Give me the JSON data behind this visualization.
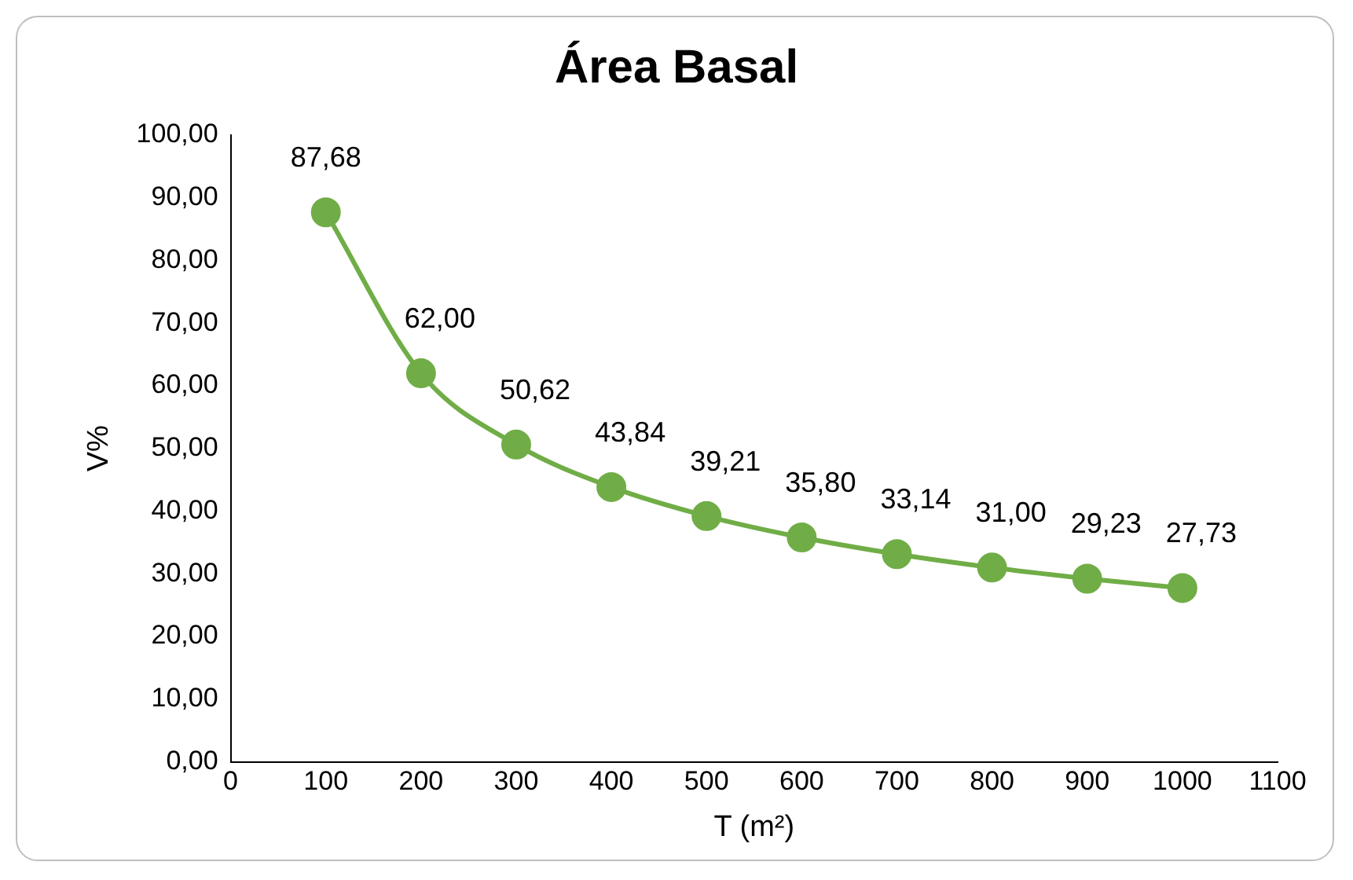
{
  "chart_data": {
    "type": "line",
    "title": "Área Basal",
    "xlabel": "T (m²)",
    "ylabel": "V%",
    "x": [
      100,
      200,
      300,
      400,
      500,
      600,
      700,
      800,
      900,
      1000
    ],
    "series": [
      {
        "color": "#70ad47",
        "values": [
          87.68,
          62.0,
          50.62,
          43.84,
          39.21,
          35.8,
          33.14,
          31.0,
          29.23,
          27.73
        ],
        "value_labels": [
          "87,68",
          "62,00",
          "50,62",
          "43,84",
          "39,21",
          "35,80",
          "33,14",
          "31,00",
          "29,23",
          "27,73"
        ]
      }
    ],
    "xlim": [
      0,
      1100
    ],
    "xticks": [
      0,
      100,
      200,
      300,
      400,
      500,
      600,
      700,
      800,
      900,
      1000,
      1100
    ],
    "ylim": [
      0,
      100
    ],
    "yticks": [
      {
        "value": 0,
        "label": "0,00"
      },
      {
        "value": 10,
        "label": "10,00"
      },
      {
        "value": 20,
        "label": "20,00"
      },
      {
        "value": 30,
        "label": "30,00"
      },
      {
        "value": 40,
        "label": "40,00"
      },
      {
        "value": 50,
        "label": "50,00"
      },
      {
        "value": 60,
        "label": "60,00"
      },
      {
        "value": 70,
        "label": "70,00"
      },
      {
        "value": 80,
        "label": "80,00"
      },
      {
        "value": 90,
        "label": "90,00"
      },
      {
        "value": 100,
        "label": "100,00"
      }
    ],
    "grid": false,
    "legend": false,
    "marker": "circle",
    "line_style": "solid"
  }
}
